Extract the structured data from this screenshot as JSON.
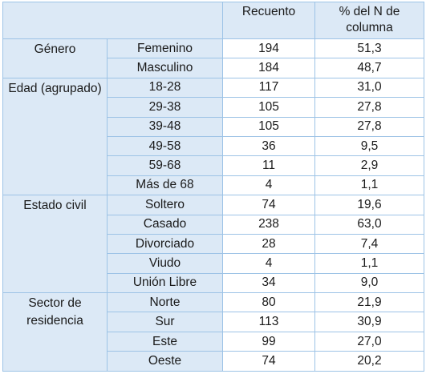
{
  "table": {
    "headers": {
      "count": "Recuento",
      "percent": "% del N de columna"
    },
    "groups": [
      {
        "label": "Género",
        "rows": [
          {
            "category": "Femenino",
            "count": "194",
            "percent": "51,3"
          },
          {
            "category": "Masculino",
            "count": "184",
            "percent": "48,7"
          }
        ]
      },
      {
        "label": "Edad (agrupado)",
        "rows": [
          {
            "category": "18-28",
            "count": "117",
            "percent": "31,0"
          },
          {
            "category": "29-38",
            "count": "105",
            "percent": "27,8"
          },
          {
            "category": "39-48",
            "count": "105",
            "percent": "27,8"
          },
          {
            "category": "49-58",
            "count": "36",
            "percent": "9,5"
          },
          {
            "category": "59-68",
            "count": "11",
            "percent": "2,9"
          },
          {
            "category": "Más de 68",
            "count": "4",
            "percent": "1,1"
          }
        ]
      },
      {
        "label": "Estado civil",
        "rows": [
          {
            "category": "Soltero",
            "count": "74",
            "percent": "19,6"
          },
          {
            "category": "Casado",
            "count": "238",
            "percent": "63,0"
          },
          {
            "category": "Divorciado",
            "count": "28",
            "percent": "7,4"
          },
          {
            "category": "Viudo",
            "count": "4",
            "percent": "1,1"
          },
          {
            "category": "Unión Libre",
            "count": "34",
            "percent": "9,0"
          }
        ]
      },
      {
        "label": "Sector de residencia",
        "rows": [
          {
            "category": "Norte",
            "count": "80",
            "percent": "21,9"
          },
          {
            "category": "Sur",
            "count": "113",
            "percent": "30,9"
          },
          {
            "category": "Este",
            "count": "99",
            "percent": "27,0"
          },
          {
            "category": "Oeste",
            "count": "74",
            "percent": "20,2"
          }
        ]
      }
    ]
  },
  "colors": {
    "header_fill": "#dce9f6",
    "grid_line": "#9dc3e6"
  }
}
